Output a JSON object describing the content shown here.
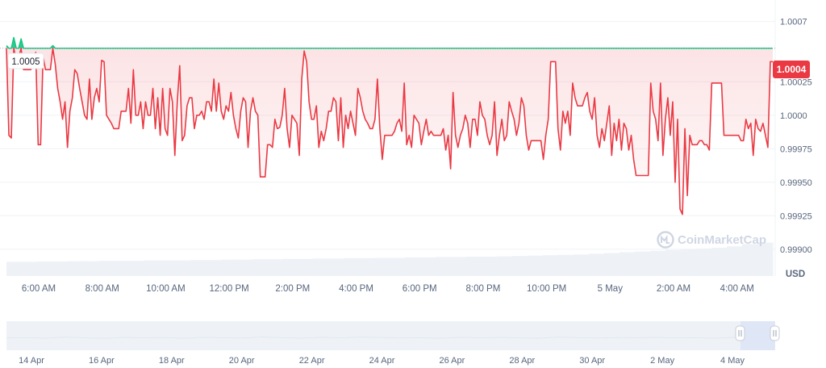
{
  "chart_data": {
    "type": "line",
    "title": "",
    "xlabel": "",
    "ylabel": "",
    "currency_label": "USD",
    "watermark": "CoinMarketCap",
    "ylim": [
      0.9988,
      1.0008
    ],
    "y_ticks": [
      "1.0007",
      "1.00025",
      "1.0000",
      "0.99975",
      "0.99950",
      "0.99925",
      "0.99900"
    ],
    "y_tick_values": [
      1.0007,
      1.00025,
      1.0,
      0.99975,
      0.9995,
      0.99925,
      0.999
    ],
    "x_ticks": [
      "6:00 AM",
      "8:00 AM",
      "10:00 AM",
      "12:00 PM",
      "2:00 PM",
      "4:00 PM",
      "6:00 PM",
      "8:00 PM",
      "10:00 PM",
      "5 May",
      "2:00 AM",
      "4:00 AM"
    ],
    "reference_value": 1.0005,
    "reference_label": "1.0005",
    "current_value": 1.0004,
    "current_label": "1.0004",
    "colors": {
      "down": "#ea3943",
      "up": "#16c784",
      "fill": "#fde8e8"
    },
    "navigator_ticks": [
      "14 Apr",
      "16 Apr",
      "18 Apr",
      "20 Apr",
      "22 Apr",
      "24 Apr",
      "26 Apr",
      "28 Apr",
      "30 Apr",
      "2 May",
      "4 May"
    ],
    "series": [
      {
        "values": [
          1.00052,
          0.99985,
          0.99983,
          1.00058,
          1.00041,
          1.00043,
          1.00057,
          1.00034,
          1.00034,
          1.00034,
          1.00034,
          1.00043,
          1.00047,
          0.99978,
          0.99978,
          1.00044,
          1.00034,
          1.00034,
          1.00034,
          1.00052,
          1.00038,
          1.0002,
          1.0001,
          0.99997,
          1.0001,
          0.99976,
          1.00003,
          1.00013,
          1.00034,
          1.00031,
          1.0002,
          1.0001,
          1.0,
          0.99997,
          1.00027,
          0.99997,
          1.00013,
          1.0002,
          1.0001,
          1.00041,
          1.0004,
          1.0,
          0.99997,
          0.99994,
          0.9999,
          0.9999,
          0.9999,
          1.00003,
          1.00003,
          1.00003,
          1.0002,
          0.99994,
          1.00034,
          1.0,
          1.0,
          1.0001,
          0.9999,
          1.0001,
          1.0,
          1.0,
          1.0002,
          0.9999,
          1.00013,
          0.99985,
          1.0002,
          0.9999,
          0.99985,
          1.0002,
          1.0001,
          0.9997,
          1.0001,
          1.00037,
          0.99981,
          0.99985,
          1.00007,
          1.00013,
          1.00013,
          0.9999,
          1.0,
          1.0,
          1.00003,
          0.99997,
          1.0001,
          1.0001,
          1.00003,
          1.00027,
          1.00003,
          1.00024,
          1.00003,
          0.99997,
          1.00007,
          1.00003,
          1.00017,
          1.0,
          0.9999,
          0.99983,
          1.00003,
          1.00013,
          1.0001,
          0.99976,
          1.00003,
          1.00013,
          1.00003,
          1.0,
          0.99954,
          0.99954,
          0.99954,
          0.99978,
          0.99978,
          0.99976,
          0.99997,
          0.9999,
          0.99991,
          1.0,
          1.0002,
          0.9999,
          0.99976,
          1.0,
          0.99997,
          0.99994,
          0.9997,
          1.00027,
          1.00048,
          1.0004,
          1.0001,
          0.99997,
          0.99997,
          1.00007,
          0.99976,
          0.99988,
          0.99981,
          0.9999,
          1.00003,
          1.00003,
          1.00013,
          1.0001,
          0.99981,
          1.00013,
          0.99976,
          1.0,
          0.9999,
          1.00003,
          0.99994,
          0.99985,
          1.0002,
          1.00013,
          1.00003,
          0.99997,
          0.99994,
          0.9999,
          0.9999,
          0.99997,
          1.00027,
          0.9999,
          0.99967,
          0.99985,
          0.99985,
          0.99985,
          0.99985,
          0.99988,
          0.99994,
          0.99997,
          0.99988,
          1.00024,
          0.99978,
          0.99985,
          0.99976,
          1.0,
          0.99997,
          0.99994,
          0.99978,
          0.99988,
          0.99997,
          0.99985,
          0.99988,
          0.99985,
          0.99985,
          0.99985,
          0.99985,
          0.9999,
          0.99974,
          0.99985,
          0.9996,
          1.00017,
          0.99985,
          0.99976,
          0.99985,
          0.9999,
          1.0,
          0.99994,
          0.99976,
          0.99997,
          0.99997,
          0.99985,
          1.0001,
          1.0,
          0.99997,
          0.99985,
          0.99978,
          0.99985,
          1.0001,
          0.9997,
          0.99985,
          0.99997,
          0.99981,
          0.99985,
          1.0001,
          1.00003,
          0.99997,
          0.99985,
          0.99994,
          1.00013,
          1.00007,
          0.99985,
          0.99974,
          0.99981,
          0.99981,
          0.99981,
          0.99981,
          0.99981,
          0.99967,
          0.99985,
          0.99997,
          1.0004,
          1.0004,
          1.0004,
          0.9999,
          0.99974,
          1.00003,
          0.99994,
          1.00003,
          0.99985,
          1.00024,
          1.00013,
          1.00007,
          1.00007,
          1.00007,
          1.00013,
          1.00017,
          1.00003,
          0.99997,
          1.00013,
          0.99985,
          0.99976,
          0.9999,
          0.99981,
          0.99994,
          1.00007,
          0.9997,
          0.99994,
          0.99981,
          0.99997,
          0.99974,
          0.99994,
          0.9999,
          0.99974,
          0.99985,
          0.99967,
          0.99955,
          0.99955,
          0.99955,
          0.99955,
          0.99955,
          0.99955,
          1.00024,
          1.00003,
          0.99997,
          0.99981,
          1.00024,
          0.9997,
          0.99997,
          1.00013,
          0.99985,
          1.0001,
          0.9995,
          0.99997,
          0.9993,
          0.99926,
          0.9999,
          0.9994,
          0.99985,
          0.99978,
          0.99978,
          0.99978,
          0.99981,
          0.99981,
          0.99978,
          0.99978,
          0.99974,
          1.00024,
          1.00024,
          1.00024,
          1.00024,
          1.00024,
          0.99985,
          0.99985,
          0.99985,
          0.99985,
          0.99985,
          0.99985,
          0.99985,
          0.99981,
          0.99981,
          0.99997,
          0.9999,
          0.99994,
          0.9997,
          0.99997,
          0.9999,
          0.99988,
          0.99994,
          0.99985,
          0.99976,
          1.0004,
          1.0004
        ]
      }
    ],
    "volume": [
      0.38,
      0.38,
      0.39,
      0.39,
      0.4,
      0.4,
      0.41,
      0.41,
      0.41,
      0.42,
      0.42,
      0.42,
      0.43,
      0.43,
      0.44,
      0.44,
      0.45,
      0.45,
      0.46,
      0.46,
      0.47,
      0.47,
      0.48,
      0.48,
      0.49,
      0.49,
      0.5,
      0.5,
      0.51,
      0.51,
      0.52,
      0.52,
      0.53,
      0.54,
      0.55,
      0.56,
      0.57,
      0.58,
      0.6,
      0.62,
      0.64,
      0.66,
      0.68,
      0.7,
      0.72,
      0.74,
      0.76,
      0.8,
      0.86,
      0.9
    ],
    "navigator_values": [
      0.45,
      0.48,
      0.44,
      0.52,
      0.47,
      0.42,
      0.5,
      0.46,
      0.49,
      0.43,
      0.51,
      0.47,
      0.45,
      0.53,
      0.48,
      0.44,
      0.5,
      0.46,
      0.52,
      0.49,
      0.45,
      0.48,
      0.43,
      0.51,
      0.47,
      0.5,
      0.46,
      0.44,
      0.52,
      0.48,
      0.45,
      0.49,
      0.47,
      0.5,
      0.46,
      0.48,
      0.44,
      0.51,
      0.47,
      0.49
    ]
  }
}
